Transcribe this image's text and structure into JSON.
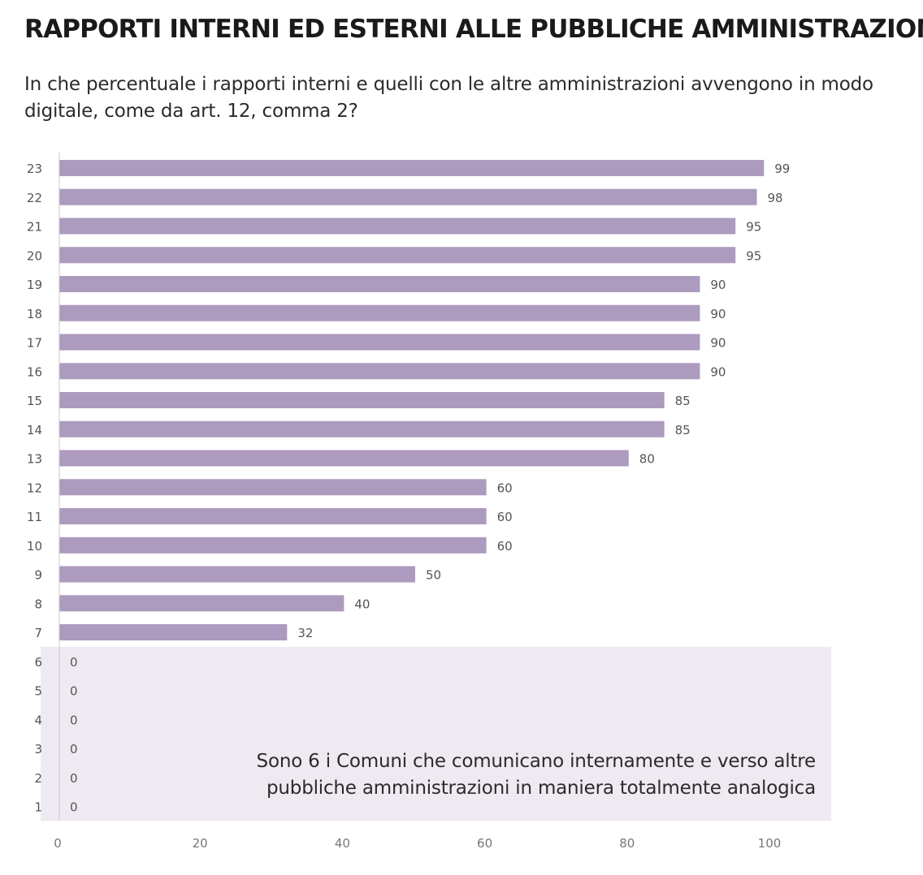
{
  "title": "RAPPORTI INTERNI ED ESTERNI ALLE PUBBLICHE AMMINISTRAZIONI",
  "subtitle": "In che percentuale i rapporti interni e quelli con le altre amministrazioni avvengono in modo digitale, come da art. 12, comma 2?",
  "note": "Sono 6 i Comuni che comunicano internamente e verso altre pubbliche amministrazioni in maniera totalmente analogica",
  "colors": {
    "bar": "#ad9abf",
    "highlight_bg": "#efeaf2",
    "text": "#555555"
  },
  "chart_data": {
    "type": "bar",
    "orientation": "horizontal",
    "title": "RAPPORTI INTERNI ED ESTERNI ALLE PUBBLICHE AMMINISTRAZIONI",
    "categories": [
      "23",
      "22",
      "21",
      "20",
      "19",
      "18",
      "17",
      "16",
      "15",
      "14",
      "13",
      "12",
      "11",
      "10",
      "9",
      "8",
      "7",
      "6",
      "5",
      "4",
      "3",
      "2",
      "1"
    ],
    "values": [
      99,
      98,
      95,
      95,
      90,
      90,
      90,
      90,
      85,
      85,
      80,
      60,
      60,
      60,
      50,
      40,
      32,
      0,
      0,
      0,
      0,
      0,
      0
    ],
    "x_ticks": [
      "0",
      "20",
      "40",
      "60",
      "80",
      "100"
    ],
    "xlim": [
      0,
      100
    ],
    "grid": false,
    "highlight_categories": [
      "6",
      "5",
      "4",
      "3",
      "2",
      "1"
    ]
  }
}
